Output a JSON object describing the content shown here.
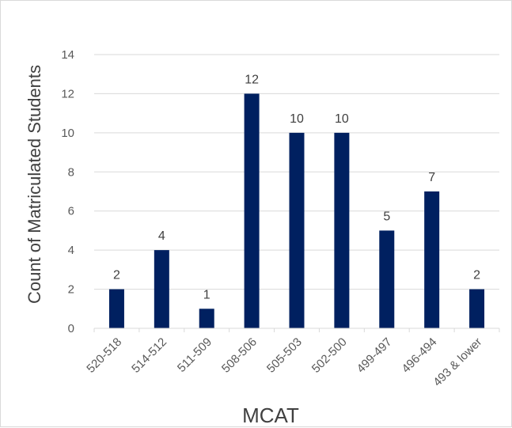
{
  "chart_data": {
    "type": "bar",
    "categories": [
      "520-518",
      "514-512",
      "511-509",
      "508-506",
      "505-503",
      "502-500",
      "499-497",
      "496-494",
      "493 & lower"
    ],
    "values": [
      2,
      4,
      1,
      12,
      10,
      10,
      5,
      7,
      2
    ],
    "data_labels": [
      "2",
      "4",
      "1",
      "12",
      "10",
      "10",
      "5",
      "7",
      "2"
    ],
    "xlabel": "MCAT",
    "ylabel": "Count of Matriculated Students",
    "ylim": [
      0,
      14
    ],
    "yticks": [
      0,
      2,
      4,
      6,
      8,
      10,
      12,
      14
    ],
    "grid": true,
    "legend": "none",
    "bar_color": "#002060",
    "grid_color": "#d9d9d9"
  }
}
